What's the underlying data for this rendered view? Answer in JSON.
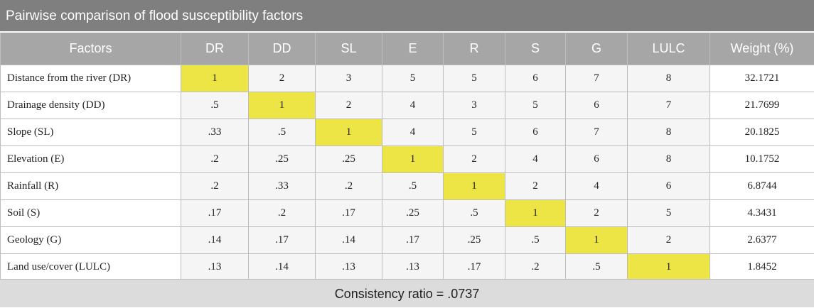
{
  "title": "Pairwise comparison of flood susceptibility factors",
  "headers": [
    "Factors",
    "DR",
    "DD",
    "SL",
    "E",
    "R",
    "S",
    "G",
    "LULC",
    "Weight (%)"
  ],
  "rows": [
    {
      "factor": "Distance from the river (DR)",
      "values": [
        "1",
        "2",
        "3",
        "5",
        "5",
        "6",
        "7",
        "8"
      ],
      "weight": "32.1721"
    },
    {
      "factor": "Drainage density (DD)",
      "values": [
        ".5",
        "1",
        "2",
        "4",
        "3",
        "5",
        "6",
        "7"
      ],
      "weight": "21.7699"
    },
    {
      "factor": "Slope (SL)",
      "values": [
        ".33",
        ".5",
        "1",
        "4",
        "5",
        "6",
        "7",
        "8"
      ],
      "weight": "20.1825"
    },
    {
      "factor": "Elevation (E)",
      "values": [
        ".2",
        ".25",
        ".25",
        "1",
        "2",
        "4",
        "6",
        "8"
      ],
      "weight": "10.1752"
    },
    {
      "factor": "Rainfall (R)",
      "values": [
        ".2",
        ".33",
        ".2",
        ".5",
        "1",
        "2",
        "4",
        "6"
      ],
      "weight": "6.8744"
    },
    {
      "factor": "Soil (S)",
      "values": [
        ".17",
        ".2",
        ".17",
        ".25",
        ".5",
        "1",
        "2",
        "5"
      ],
      "weight": "4.3431"
    },
    {
      "factor": "Geology (G)",
      "values": [
        ".14",
        ".17",
        ".14",
        ".17",
        ".25",
        ".5",
        "1",
        "2"
      ],
      "weight": "2.6377"
    },
    {
      "factor": "Land use/cover (LULC)",
      "values": [
        ".13",
        ".14",
        ".13",
        ".13",
        ".17",
        ".2",
        ".5",
        "1"
      ],
      "weight": "1.8452"
    }
  ],
  "footer": "Consistency ratio = .0737",
  "colors": {
    "header_bg": "#a6a6a6",
    "title_bg": "#7f7f7f",
    "diagonal": "#ede446",
    "footer_bg": "#dcdcdc"
  }
}
